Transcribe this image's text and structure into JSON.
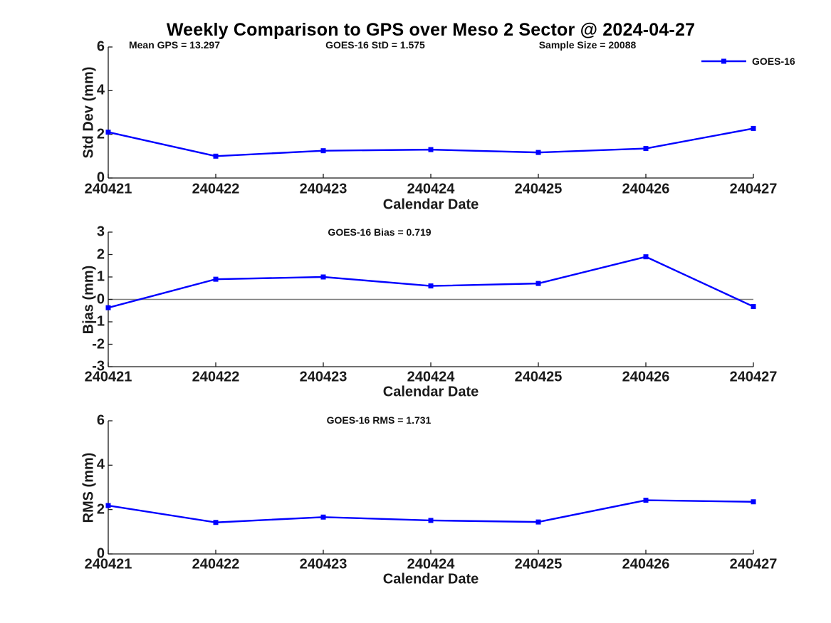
{
  "title": "Weekly Comparison to GPS over Meso 2 Sector @ 2024-04-27",
  "legend": {
    "label": "GOES-16"
  },
  "colors": {
    "series": "#0000FF",
    "axis": "#1a1a1a",
    "tick_text": "#1a1a1a",
    "zero_line": "#7d7d7d",
    "title_text": "#000000"
  },
  "chart_data": [
    {
      "type": "line",
      "id": "std-dev",
      "annotations": [
        "Mean GPS = 13.297",
        "GOES-16 StD = 1.575",
        "Sample Size = 20088"
      ],
      "categories": [
        "240421",
        "240422",
        "240423",
        "240424",
        "240425",
        "240426",
        "240427"
      ],
      "series": [
        {
          "name": "GOES-16",
          "values": [
            2.1,
            1.0,
            1.25,
            1.3,
            1.17,
            1.35,
            2.27
          ]
        }
      ],
      "xlabel": "Calendar Date",
      "ylabel": "Std Dev (mm)",
      "ylim": [
        0,
        6
      ],
      "yticks": [
        0,
        2,
        4,
        6
      ],
      "grid": false,
      "zero_line": false,
      "legend_position": "top-right-outside",
      "marker": "square"
    },
    {
      "type": "line",
      "id": "bias",
      "annotations": [
        "GOES-16 Bias  = 0.719"
      ],
      "categories": [
        "240421",
        "240422",
        "240423",
        "240424",
        "240425",
        "240426",
        "240427"
      ],
      "series": [
        {
          "name": "GOES-16",
          "values": [
            -0.37,
            0.9,
            1.0,
            0.6,
            0.71,
            1.9,
            -0.32
          ]
        }
      ],
      "xlabel": "Calendar Date",
      "ylabel": "Bias (mm)",
      "ylim": [
        -3,
        3
      ],
      "yticks": [
        -3,
        -2,
        -1,
        0,
        1,
        2,
        3
      ],
      "grid": false,
      "zero_line": true,
      "marker": "square"
    },
    {
      "type": "line",
      "id": "rms",
      "annotations": [
        "GOES-16 RMS = 1.731"
      ],
      "categories": [
        "240421",
        "240422",
        "240423",
        "240424",
        "240425",
        "240426",
        "240427"
      ],
      "series": [
        {
          "name": "GOES-16",
          "values": [
            2.18,
            1.42,
            1.66,
            1.51,
            1.44,
            2.42,
            2.35
          ]
        }
      ],
      "xlabel": "Calendar Date",
      "ylabel": "RMS (mm)",
      "ylim": [
        0,
        6
      ],
      "yticks": [
        0,
        2,
        4,
        6
      ],
      "grid": false,
      "zero_line": false,
      "marker": "square"
    }
  ]
}
